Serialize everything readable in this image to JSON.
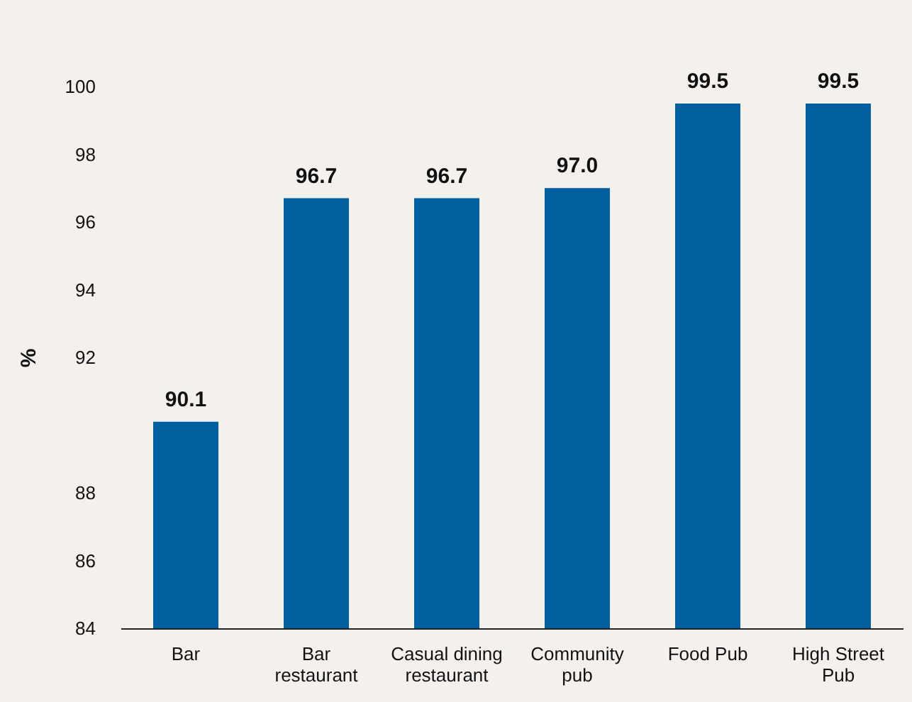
{
  "chart_data": {
    "type": "bar",
    "ylabel": "%",
    "categories": [
      "Bar",
      "Bar restaurant",
      "Casual dining restaurant",
      "Community pub",
      "Food Pub",
      "High Street Pub"
    ],
    "values": [
      90.1,
      96.7,
      96.7,
      97.0,
      99.5,
      99.5
    ],
    "value_labels": [
      "90.1",
      "96.7",
      "96.7",
      "97.0",
      "99.5",
      "99.5"
    ],
    "color": "#005f9e",
    "ylim": [
      84,
      100
    ],
    "yticks": [
      84,
      86,
      88,
      92,
      94,
      96,
      98,
      100
    ],
    "grid": false
  }
}
